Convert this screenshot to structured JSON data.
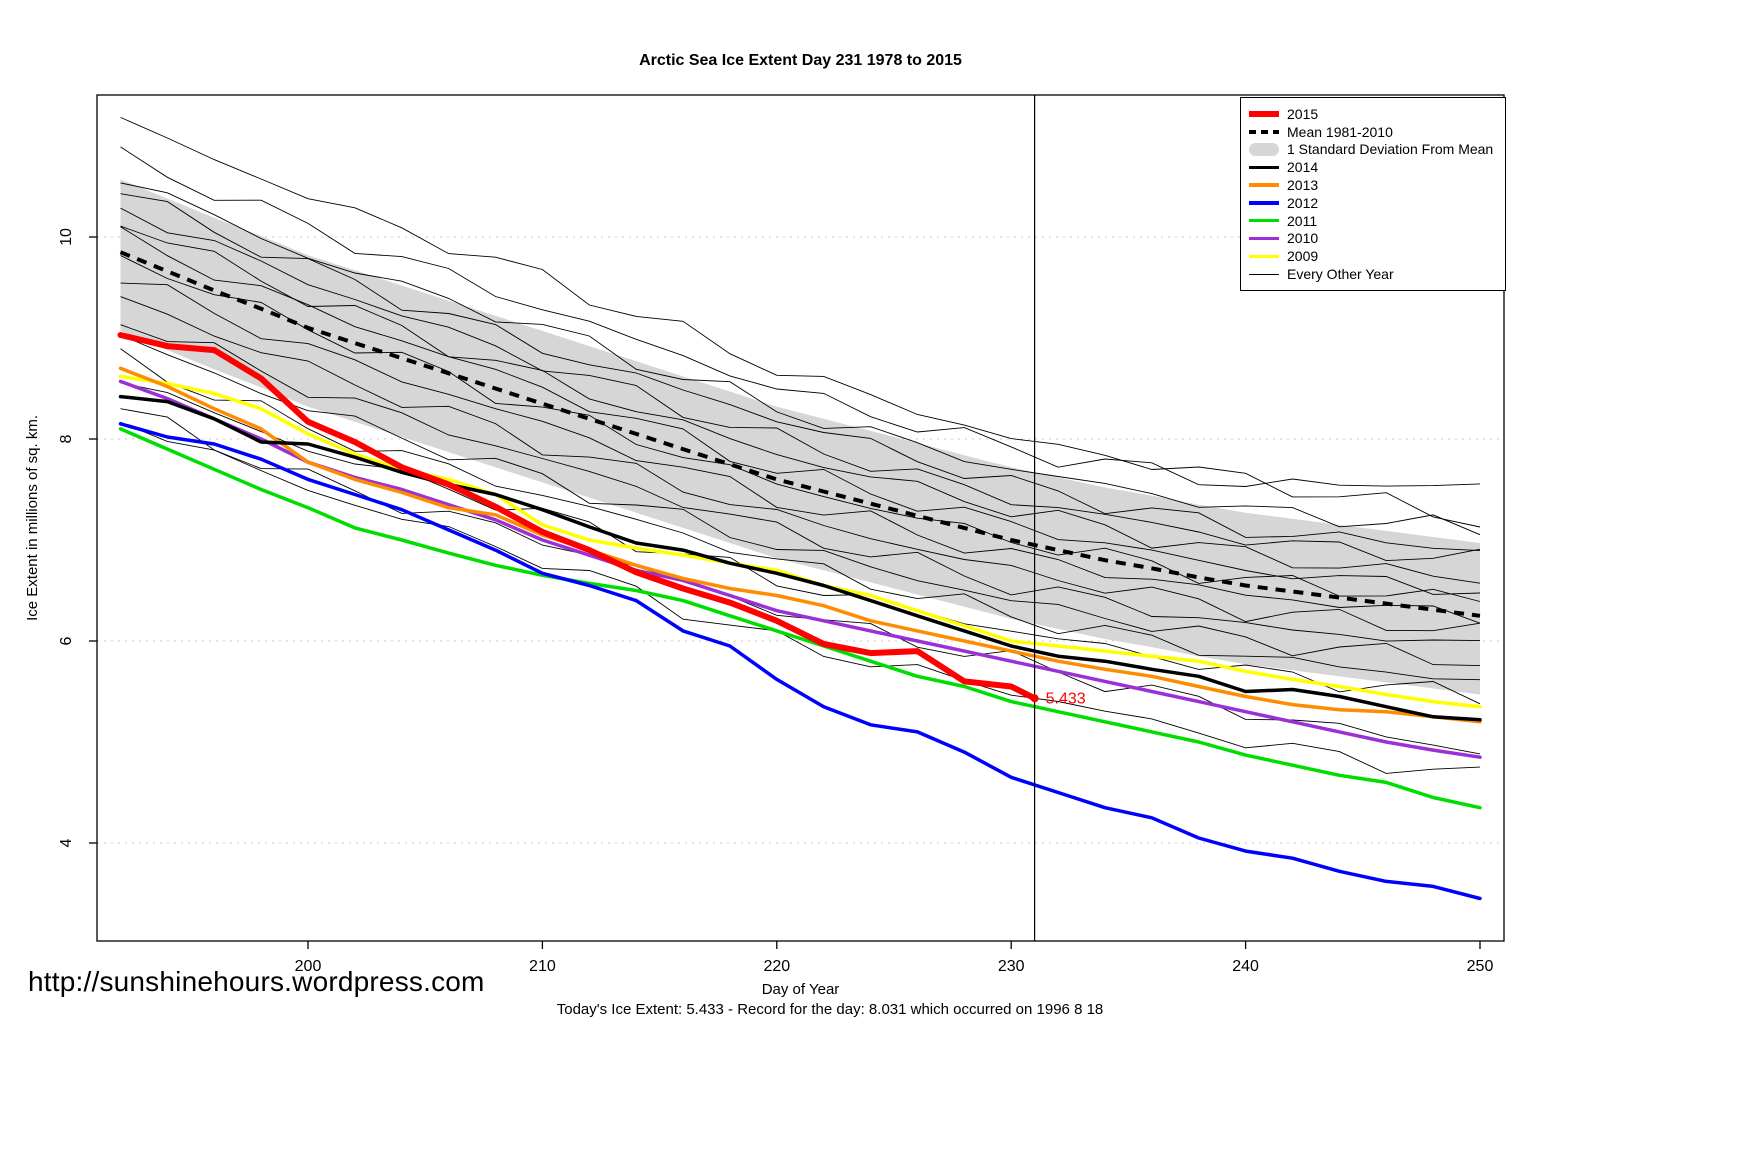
{
  "page": {
    "title": "Arctic Sea Ice Extent Day 231 1978 to 2015",
    "url_watermark": "http://sunshinehours.wordpress.com",
    "caption": "Today's Ice Extent: 5.433  - Record for the day: 8.031 which occurred on 1996 8 18"
  },
  "chart_data": {
    "type": "line",
    "title": "Arctic Sea Ice Extent Day 231 1978 to 2015",
    "xlabel": "Day of Year",
    "ylabel": "Ice Extent in millions of sq. km.",
    "xlim": [
      191.5,
      251
    ],
    "ylim": [
      3.0,
      11.4
    ],
    "x_ticks": [
      200,
      210,
      220,
      230,
      240,
      250
    ],
    "y_ticks": [
      4,
      6,
      8,
      10
    ],
    "grid": true,
    "legend_position": "top-right",
    "vline_x": 231,
    "annotation": {
      "x": 231,
      "y": 5.433,
      "label": "5.433",
      "color": "#FF0000"
    },
    "x": [
      192,
      194,
      196,
      198,
      200,
      202,
      204,
      206,
      208,
      210,
      212,
      214,
      216,
      218,
      220,
      222,
      224,
      226,
      228,
      230,
      232,
      234,
      236,
      238,
      240,
      242,
      244,
      246,
      248,
      250
    ],
    "mean": {
      "name": "Mean 1981-2010",
      "color": "#000000",
      "dash": true,
      "width": 4,
      "values": [
        9.85,
        9.66,
        9.47,
        9.29,
        9.1,
        8.95,
        8.8,
        8.65,
        8.5,
        8.35,
        8.2,
        8.05,
        7.9,
        7.75,
        7.6,
        7.48,
        7.36,
        7.24,
        7.12,
        7.0,
        6.9,
        6.8,
        6.72,
        6.63,
        6.55,
        6.49,
        6.43,
        6.37,
        6.31,
        6.25
      ]
    },
    "band": {
      "name": "1 Standard Deviation From Mean",
      "offset_upper": 0.72,
      "offset_lower": 0.78,
      "color": "#D6D6D6"
    },
    "series": [
      {
        "name": "2015",
        "color": "#FF0000",
        "width": 6,
        "x": [
          192,
          194,
          196,
          198,
          200,
          202,
          204,
          206,
          208,
          210,
          212,
          214,
          216,
          218,
          220,
          222,
          224,
          226,
          228,
          230,
          231
        ],
        "values": [
          9.03,
          8.92,
          8.88,
          8.6,
          8.17,
          7.97,
          7.72,
          7.55,
          7.33,
          7.08,
          6.9,
          6.68,
          6.52,
          6.38,
          6.2,
          5.97,
          5.88,
          5.9,
          5.6,
          5.55,
          5.433
        ]
      },
      {
        "name": "2014",
        "color": "#000000",
        "width": 3.5,
        "values": [
          8.42,
          8.37,
          8.2,
          7.97,
          7.95,
          7.82,
          7.67,
          7.55,
          7.45,
          7.3,
          7.13,
          6.97,
          6.9,
          6.77,
          6.67,
          6.55,
          6.4,
          6.25,
          6.1,
          5.95,
          5.85,
          5.8,
          5.72,
          5.65,
          5.5,
          5.52,
          5.45,
          5.35,
          5.25,
          5.22
        ]
      },
      {
        "name": "2013",
        "color": "#FF8C00",
        "width": 3.5,
        "values": [
          8.7,
          8.52,
          8.3,
          8.1,
          7.77,
          7.6,
          7.47,
          7.32,
          7.25,
          7.05,
          6.9,
          6.75,
          6.62,
          6.52,
          6.45,
          6.35,
          6.2,
          6.1,
          6.0,
          5.9,
          5.8,
          5.72,
          5.65,
          5.55,
          5.45,
          5.37,
          5.32,
          5.3,
          5.25,
          5.2
        ]
      },
      {
        "name": "2012",
        "color": "#0000FF",
        "width": 3.5,
        "values": [
          8.15,
          8.02,
          7.95,
          7.8,
          7.6,
          7.45,
          7.3,
          7.1,
          6.9,
          6.67,
          6.55,
          6.4,
          6.1,
          5.95,
          5.62,
          5.35,
          5.17,
          5.1,
          4.9,
          4.65,
          4.5,
          4.35,
          4.25,
          4.05,
          3.92,
          3.85,
          3.72,
          3.62,
          3.57,
          3.45
        ]
      },
      {
        "name": "2011",
        "color": "#00DD00",
        "width": 3.5,
        "values": [
          8.1,
          7.9,
          7.7,
          7.5,
          7.32,
          7.12,
          7.0,
          6.87,
          6.75,
          6.65,
          6.57,
          6.5,
          6.4,
          6.25,
          6.1,
          5.95,
          5.8,
          5.65,
          5.55,
          5.4,
          5.3,
          5.2,
          5.1,
          5.0,
          4.87,
          4.77,
          4.67,
          4.6,
          4.45,
          4.35
        ]
      },
      {
        "name": "2010",
        "color": "#9B30D6",
        "width": 3.5,
        "values": [
          8.57,
          8.4,
          8.2,
          8.0,
          7.77,
          7.62,
          7.5,
          7.35,
          7.2,
          7.0,
          6.85,
          6.7,
          6.6,
          6.45,
          6.3,
          6.2,
          6.1,
          6.0,
          5.9,
          5.8,
          5.7,
          5.6,
          5.5,
          5.4,
          5.3,
          5.2,
          5.1,
          5.0,
          4.92,
          4.85
        ]
      },
      {
        "name": "2009",
        "color": "#FFFF00",
        "width": 3.5,
        "values": [
          8.62,
          8.55,
          8.45,
          8.3,
          8.05,
          7.85,
          7.7,
          7.6,
          7.45,
          7.15,
          7.0,
          6.92,
          6.85,
          6.77,
          6.7,
          6.55,
          6.45,
          6.3,
          6.15,
          6.0,
          5.95,
          5.9,
          5.85,
          5.8,
          5.7,
          5.62,
          5.55,
          5.47,
          5.4,
          5.35
        ]
      }
    ],
    "background_years": {
      "name": "Every Other Year",
      "color": "#000000",
      "width": 1,
      "x": [
        192,
        200,
        210,
        220,
        230,
        240,
        250
      ],
      "lines": [
        [
          11.15,
          10.4,
          9.6,
          8.7,
          8.0,
          7.6,
          7.2
        ],
        [
          10.8,
          10.1,
          9.3,
          8.5,
          7.9,
          7.55,
          7.55
        ],
        [
          10.6,
          9.8,
          9.1,
          8.3,
          7.7,
          7.3,
          7.1
        ],
        [
          10.45,
          9.7,
          8.9,
          8.2,
          7.55,
          7.1,
          6.9
        ],
        [
          10.3,
          9.55,
          8.75,
          8.0,
          7.4,
          7.0,
          6.8
        ],
        [
          10.15,
          9.4,
          8.6,
          7.85,
          7.3,
          6.85,
          6.6
        ],
        [
          10.0,
          9.3,
          8.5,
          7.7,
          7.15,
          6.7,
          6.5
        ],
        [
          9.8,
          9.1,
          8.3,
          7.55,
          7.0,
          6.6,
          6.4
        ],
        [
          9.6,
          8.9,
          8.15,
          7.4,
          6.85,
          6.45,
          6.25
        ],
        [
          9.4,
          8.7,
          7.95,
          7.25,
          6.7,
          6.3,
          6.1
        ],
        [
          9.2,
          8.5,
          7.8,
          7.1,
          6.55,
          6.15,
          5.95
        ],
        [
          9.0,
          8.3,
          7.6,
          6.95,
          6.4,
          6.0,
          5.8
        ],
        [
          8.8,
          8.1,
          7.45,
          6.8,
          6.25,
          5.85,
          5.6
        ],
        [
          8.6,
          7.9,
          7.25,
          6.6,
          6.1,
          5.7,
          5.45
        ],
        [
          8.3,
          7.6,
          7.0,
          6.3,
          5.8,
          5.3,
          4.9
        ],
        [
          8.2,
          7.5,
          6.8,
          6.0,
          5.5,
          5.0,
          4.65
        ]
      ]
    },
    "legend": [
      {
        "label": "2015",
        "type": "line",
        "color": "#FF0000",
        "width": 6
      },
      {
        "label": "Mean 1981-2010",
        "type": "dashed",
        "color": "#000000"
      },
      {
        "label": "1 Standard Deviation From Mean",
        "type": "band",
        "color": "#D6D6D6"
      },
      {
        "label": "2014",
        "type": "line",
        "color": "#000000",
        "width": 3.5
      },
      {
        "label": "2013",
        "type": "line",
        "color": "#FF8C00",
        "width": 3.5
      },
      {
        "label": "2012",
        "type": "line",
        "color": "#0000FF",
        "width": 3.5
      },
      {
        "label": "2011",
        "type": "line",
        "color": "#00DD00",
        "width": 3.5
      },
      {
        "label": "2010",
        "type": "line",
        "color": "#9B30D6",
        "width": 3.5
      },
      {
        "label": "2009",
        "type": "line",
        "color": "#FFFF00",
        "width": 3.5
      },
      {
        "label": "Every Other Year",
        "type": "line",
        "color": "#000000",
        "width": 1
      }
    ]
  }
}
